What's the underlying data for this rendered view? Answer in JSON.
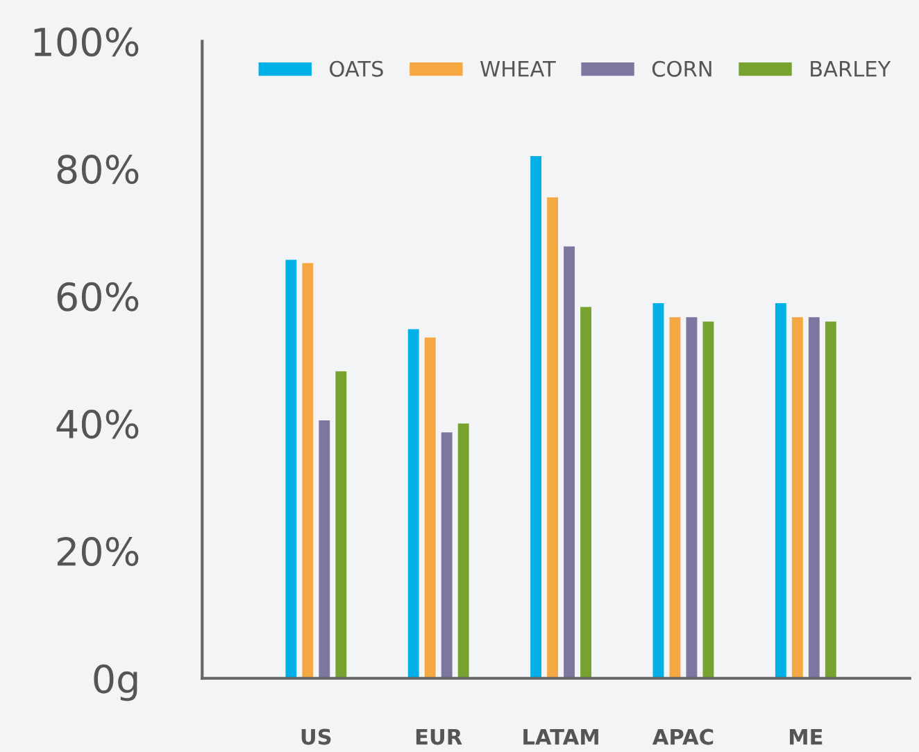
{
  "chart_data": {
    "type": "bar",
    "categories": [
      "US",
      "EUR",
      "LATAM",
      "APAC",
      "ME"
    ],
    "series": [
      {
        "name": "OATS",
        "color": "#00b0e6",
        "values": [
          65.7,
          54.8,
          82,
          58.9,
          58.9
        ]
      },
      {
        "name": "WHEAT",
        "color": "#f5a742",
        "values": [
          65.2,
          53.5,
          75.5,
          56.7,
          56.7
        ]
      },
      {
        "name": "CORN",
        "color": "#7b77a0",
        "values": [
          40.5,
          38.6,
          67.8,
          56.7,
          56.7
        ]
      },
      {
        "name": "BARLEY",
        "color": "#78a22f",
        "values": [
          48.2,
          40,
          58.3,
          56,
          56
        ]
      }
    ],
    "ylim": [
      0,
      100
    ],
    "yticks": [
      {
        "value": 0,
        "label": "0g"
      },
      {
        "value": 20,
        "label": "20%"
      },
      {
        "value": 40,
        "label": "40%"
      },
      {
        "value": 60,
        "label": "60%"
      },
      {
        "value": 80,
        "label": "80%"
      },
      {
        "value": 100,
        "label": "100%"
      }
    ],
    "grid": false,
    "legend": "top right"
  }
}
